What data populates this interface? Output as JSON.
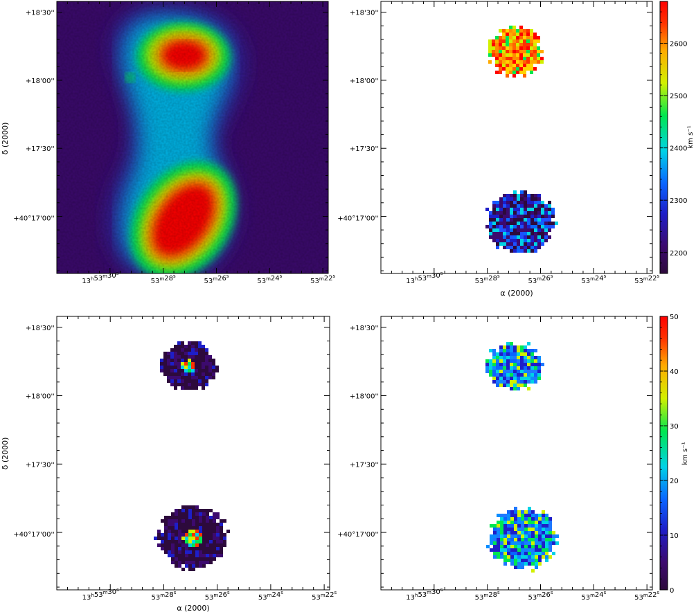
{
  "chart_data": [
    {
      "type": "heatmap",
      "panel": "top-left",
      "content": "intensity map (smooth)",
      "xticks": [
        "13h53m30s",
        "53m28s",
        "53m26s",
        "53m24s",
        "53m22s"
      ],
      "yticks": [
        "+18'30''",
        "+18'00''",
        "+17'30''",
        "+40°17'00''"
      ],
      "xlabel": "",
      "ylabel": "δ (2000)",
      "colorbar": null
    },
    {
      "type": "heatmap",
      "panel": "top-right",
      "content": "velocity field",
      "xticks": [
        "13h53m30s",
        "53m28s",
        "53m26s",
        "53m24s",
        "53m22s"
      ],
      "yticks": [
        "+18'30''",
        "+18'00''",
        "+17'30''",
        "+40°17'00''"
      ],
      "xlabel": "α (2000)",
      "ylabel": "",
      "colorbar": {
        "label": "km s⁻¹",
        "range": [
          2160,
          2680
        ],
        "ticks": [
          2200,
          2300,
          2400,
          2500,
          2600
        ]
      }
    },
    {
      "type": "heatmap",
      "panel": "bottom-left",
      "content": "residual / monochromatic map (masked)",
      "xticks": [
        "13h53m30s",
        "53m28s",
        "53m26s",
        "53m24s",
        "53m22s"
      ],
      "yticks": [
        "+18'30''",
        "+18'00''",
        "+17'30''",
        "+40°17'00''"
      ],
      "xlabel": "α (2000)",
      "ylabel": "δ (2000)",
      "colorbar": null
    },
    {
      "type": "heatmap",
      "panel": "bottom-right",
      "content": "velocity dispersion map",
      "xticks": [
        "13h53m30s",
        "53m28s",
        "53m26s",
        "53m24s",
        "53m22s"
      ],
      "yticks": [
        "+18'30''",
        "+18'00''",
        "+17'30''",
        "+40°17'00''"
      ],
      "xlabel": "",
      "ylabel": "",
      "colorbar": {
        "label": "km s⁻¹",
        "range": [
          0,
          50
        ],
        "ticks": [
          0,
          10,
          20,
          30,
          40,
          50
        ]
      }
    }
  ],
  "colors": {
    "rainbow": [
      "#2d0a3c",
      "#3c0a6e",
      "#1e1ec8",
      "#0a64ff",
      "#00d2e6",
      "#00e650",
      "#d2f000",
      "#ffaa00",
      "#ff3200",
      "#ff0000"
    ]
  }
}
